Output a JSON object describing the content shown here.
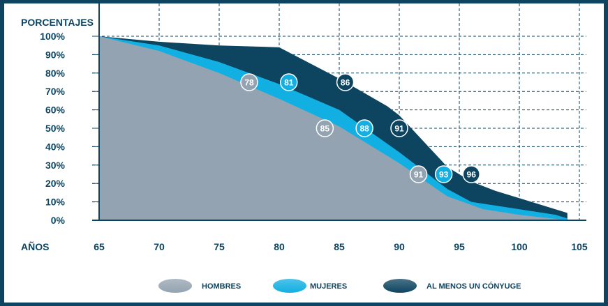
{
  "chart_data": {
    "type": "area",
    "ylabel": "PORCENTAJES",
    "xlabel": "AÑOS",
    "xlim": [
      65,
      105
    ],
    "ylim": [
      0,
      100
    ],
    "x_ticks": [
      "65",
      "70",
      "75",
      "80",
      "85",
      "90",
      "95",
      "100",
      "105"
    ],
    "y_ticks": [
      {
        "label": "0%",
        "value": 0
      },
      {
        "label": "10%",
        "value": 10
      },
      {
        "label": "20%",
        "value": 20
      },
      {
        "label": "30%",
        "value": 30
      },
      {
        "label": "40%",
        "value": 40
      },
      {
        "label": "50%",
        "value": 50
      },
      {
        "label": "60%",
        "value": 60
      },
      {
        "label": "70%",
        "value": 70
      },
      {
        "label": "80%",
        "value": 80
      },
      {
        "label": "90%",
        "value": 90
      },
      {
        "label": "100%",
        "value": 100
      }
    ],
    "grid": true,
    "legend_position": "bottom",
    "series": [
      {
        "name": "AL MENOS UN CÓNYUGE",
        "color": "#0d4460",
        "points": [
          [
            65,
            100
          ],
          [
            70,
            97
          ],
          [
            75,
            95
          ],
          [
            80,
            94
          ],
          [
            85,
            77
          ],
          [
            89,
            62
          ],
          [
            90,
            57
          ],
          [
            94,
            29
          ],
          [
            96,
            21
          ],
          [
            98,
            16
          ],
          [
            102,
            8
          ],
          [
            104,
            4
          ]
        ]
      },
      {
        "name": "MUJERES",
        "color": "#12afe2",
        "points": [
          [
            65,
            100
          ],
          [
            70,
            95
          ],
          [
            75,
            86
          ],
          [
            80,
            74
          ],
          [
            85,
            60
          ],
          [
            90,
            37
          ],
          [
            94,
            17
          ],
          [
            96,
            10
          ],
          [
            99,
            7
          ],
          [
            103,
            3
          ],
          [
            104,
            1
          ]
        ]
      },
      {
        "name": "HOMBRES",
        "color": "#94a3b1",
        "points": [
          [
            65,
            100
          ],
          [
            70,
            92
          ],
          [
            75,
            80
          ],
          [
            80,
            66
          ],
          [
            85,
            51
          ],
          [
            90,
            31
          ],
          [
            94,
            13
          ],
          [
            97,
            6
          ],
          [
            100,
            3
          ],
          [
            104,
            0
          ]
        ]
      }
    ],
    "annotations": [
      {
        "label": "78",
        "x": 77.5,
        "y": 75,
        "color": "#94a3b1"
      },
      {
        "label": "81",
        "x": 80.8,
        "y": 75,
        "color": "#12afe2"
      },
      {
        "label": "86",
        "x": 85.5,
        "y": 75,
        "color": "#0d4460"
      },
      {
        "label": "85",
        "x": 83.8,
        "y": 50,
        "color": "#94a3b1"
      },
      {
        "label": "88",
        "x": 87.1,
        "y": 50,
        "color": "#12afe2"
      },
      {
        "label": "91",
        "x": 90.0,
        "y": 50,
        "color": "#0d4460"
      },
      {
        "label": "91",
        "x": 91.6,
        "y": 25,
        "color": "#94a3b1"
      },
      {
        "label": "93",
        "x": 93.7,
        "y": 25,
        "color": "#12afe2"
      },
      {
        "label": "96",
        "x": 96.0,
        "y": 25,
        "color": "#0d4460"
      }
    ],
    "legend": [
      {
        "label": "HOMBRES",
        "color": "#94a3b1"
      },
      {
        "label": "MUJERES",
        "color": "#12afe2"
      },
      {
        "label": "AL MENOS UN CÓNYUGE",
        "color": "#0d4460"
      }
    ]
  }
}
